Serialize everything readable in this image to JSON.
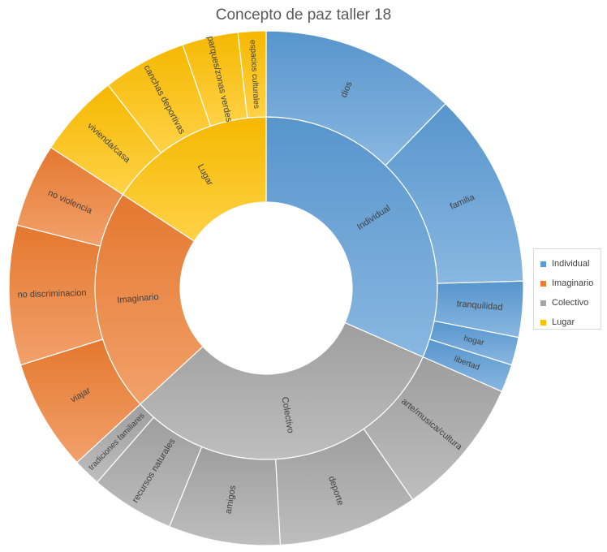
{
  "chart_data": {
    "type": "sunburst",
    "title": "Concepto de paz taller 18",
    "legend_position": "right",
    "categories": [
      {
        "name": "Individual",
        "color": "#5b9bd5",
        "children": [
          {
            "name": "dios",
            "value": 7
          },
          {
            "name": "familia",
            "value": 7
          },
          {
            "name": "tranquilidad",
            "value": 2
          },
          {
            "name": "hogar",
            "value": 1
          },
          {
            "name": "libertad",
            "value": 1
          }
        ]
      },
      {
        "name": "Colectivo",
        "color": "#a5a5a5",
        "children": [
          {
            "name": "arte/musica/cultura",
            "value": 5
          },
          {
            "name": "deporte",
            "value": 5
          },
          {
            "name": "amigos",
            "value": 4
          },
          {
            "name": "recursos naturales",
            "value": 3
          },
          {
            "name": "tradiciones familiares",
            "value": 1
          }
        ]
      },
      {
        "name": "Imaginario",
        "color": "#ed7d31",
        "children": [
          {
            "name": "viajar",
            "value": 4
          },
          {
            "name": "no discriminacion",
            "value": 5
          },
          {
            "name": "no violencia",
            "value": 3
          }
        ]
      },
      {
        "name": "Lugar",
        "color": "#ffc000",
        "children": [
          {
            "name": "vivienda/casa",
            "value": 3
          },
          {
            "name": "canchas deportivas",
            "value": 3
          },
          {
            "name": "parques/zonas verdes",
            "value": 2
          },
          {
            "name": "espacios culturales",
            "value": 1
          }
        ]
      }
    ],
    "legend": [
      "Individual",
      "Imaginario",
      "Colectivo",
      "Lugar"
    ]
  }
}
